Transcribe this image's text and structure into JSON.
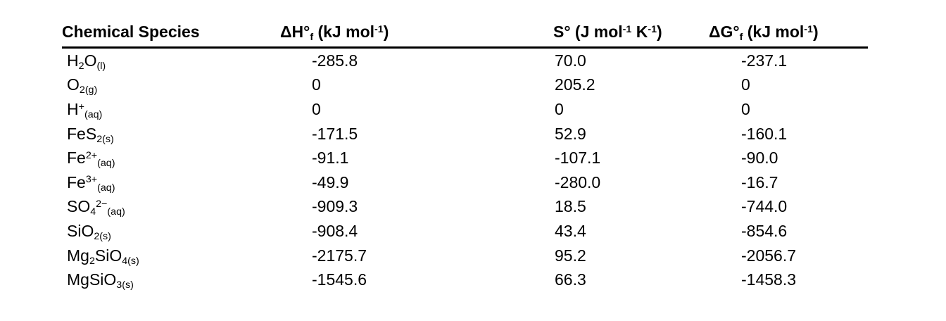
{
  "page": {
    "background": "#ffffff",
    "text_color": "#000000",
    "rule_color": "#000000"
  },
  "table": {
    "columns": [
      {
        "id": "species",
        "header_segments": [
          {
            "t": "Chemical Species"
          }
        ]
      },
      {
        "id": "delta_h_f",
        "header_segments": [
          {
            "t": "ΔH°"
          },
          {
            "t": "f",
            "s": "sub"
          },
          {
            "t": " (kJ mol"
          },
          {
            "t": "-1",
            "s": "sup"
          },
          {
            "t": ")"
          }
        ]
      },
      {
        "id": "s_standard",
        "header_segments": [
          {
            "t": "S° (J mol"
          },
          {
            "t": "-1",
            "s": "sup"
          },
          {
            "t": " K"
          },
          {
            "t": "-1",
            "s": "sup"
          },
          {
            "t": ")"
          }
        ]
      },
      {
        "id": "delta_g_f",
        "header_segments": [
          {
            "t": "ΔG°"
          },
          {
            "t": "f",
            "s": "sub"
          },
          {
            "t": " (kJ mol"
          },
          {
            "t": "-1",
            "s": "sup"
          },
          {
            "t": ")"
          }
        ]
      }
    ],
    "rows": [
      {
        "id": "h2o-l",
        "species_segments": [
          {
            "t": "H"
          },
          {
            "t": "2",
            "s": "sub"
          },
          {
            "t": "O"
          },
          {
            "t": "(l)",
            "s": "sub"
          }
        ],
        "delta_h_f": "-285.8",
        "s_standard": "70.0",
        "delta_g_f": "-237.1"
      },
      {
        "id": "o2-g",
        "species_segments": [
          {
            "t": "O"
          },
          {
            "t": "2(g)",
            "s": "sub"
          }
        ],
        "delta_h_f": "0",
        "s_standard": "205.2",
        "delta_g_f": "0"
      },
      {
        "id": "h-plus-aq",
        "species_segments": [
          {
            "t": "H"
          },
          {
            "t": "+",
            "s": "sup"
          },
          {
            "t": "(aq)",
            "s": "sub"
          }
        ],
        "delta_h_f": "0",
        "s_standard": "0",
        "delta_g_f": "0"
      },
      {
        "id": "fes2-s",
        "species_segments": [
          {
            "t": "FeS"
          },
          {
            "t": "2(s)",
            "s": "sub"
          }
        ],
        "delta_h_f": "-171.5",
        "s_standard": "52.9",
        "delta_g_f": "-160.1"
      },
      {
        "id": "fe2-aq",
        "species_segments": [
          {
            "t": "Fe"
          },
          {
            "t": "2+",
            "s": "sup"
          },
          {
            "t": "(aq)",
            "s": "sub"
          }
        ],
        "delta_h_f": "-91.1",
        "s_standard": "-107.1",
        "delta_g_f": "-90.0"
      },
      {
        "id": "fe3-aq",
        "species_segments": [
          {
            "t": "Fe"
          },
          {
            "t": "3+",
            "s": "sup"
          },
          {
            "t": "(aq)",
            "s": "sub"
          }
        ],
        "delta_h_f": "-49.9",
        "s_standard": "-280.0",
        "delta_g_f": "-16.7"
      },
      {
        "id": "so4-aq",
        "species_segments": [
          {
            "t": "SO"
          },
          {
            "t": "4",
            "s": "sub"
          },
          {
            "t": "2−",
            "s": "sup"
          },
          {
            "t": "(aq)",
            "s": "sub"
          }
        ],
        "delta_h_f": "-909.3",
        "s_standard": "18.5",
        "delta_g_f": "-744.0"
      },
      {
        "id": "sio2-s",
        "species_segments": [
          {
            "t": "SiO"
          },
          {
            "t": "2(s)",
            "s": "sub"
          }
        ],
        "delta_h_f": "-908.4",
        "s_standard": "43.4",
        "delta_g_f": "-854.6"
      },
      {
        "id": "mg2sio4-s",
        "species_segments": [
          {
            "t": "Mg"
          },
          {
            "t": "2",
            "s": "sub"
          },
          {
            "t": "SiO"
          },
          {
            "t": "4(s)",
            "s": "sub"
          }
        ],
        "delta_h_f": "-2175.7",
        "s_standard": "95.2",
        "delta_g_f": "-2056.7"
      },
      {
        "id": "mgsio3-s",
        "species_segments": [
          {
            "t": "MgSiO"
          },
          {
            "t": "3(s)",
            "s": "sub"
          }
        ],
        "delta_h_f": "-1545.6",
        "s_standard": "66.3",
        "delta_g_f": "-1458.3"
      }
    ]
  }
}
